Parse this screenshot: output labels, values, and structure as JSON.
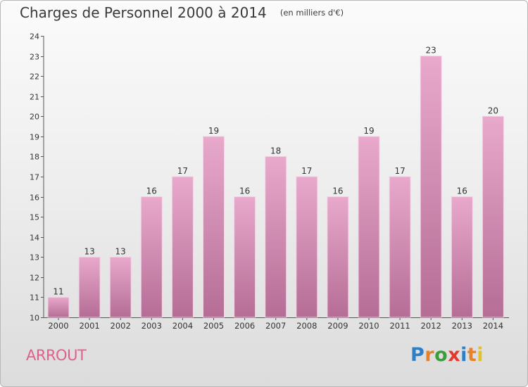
{
  "page": {
    "title": "Charges de Personnel 2000 à 2014",
    "unit_note": "(en milliers d'€)",
    "commune": "ARROUT",
    "brand": "Proxiti"
  },
  "colors": {
    "bar_top": "#e8a9cc",
    "bar_bottom": "#b56d95",
    "commune_text": "#e0608a",
    "brand_letters": [
      "#2f7fc8",
      "#e8812b",
      "#3a9e3c",
      "#e2392b",
      "#2f7fc8",
      "#e8812b",
      "#e2c22b"
    ]
  },
  "chart_data": {
    "type": "bar",
    "title": "Charges de Personnel 2000 à 2014",
    "subtitle": "(en milliers d'€)",
    "xlabel": "",
    "ylabel": "",
    "categories": [
      "2000",
      "2001",
      "2002",
      "2003",
      "2004",
      "2005",
      "2006",
      "2007",
      "2008",
      "2009",
      "2010",
      "2011",
      "2012",
      "2013",
      "2014"
    ],
    "values": [
      11,
      13,
      13,
      16,
      17,
      19,
      16,
      18,
      17,
      16,
      19,
      17,
      23,
      16,
      20
    ],
    "ylim": [
      10,
      24
    ],
    "yticks": [
      10,
      11,
      12,
      13,
      14,
      15,
      16,
      17,
      18,
      19,
      20,
      21,
      22,
      23,
      24
    ],
    "grid": false,
    "legend": "none"
  }
}
